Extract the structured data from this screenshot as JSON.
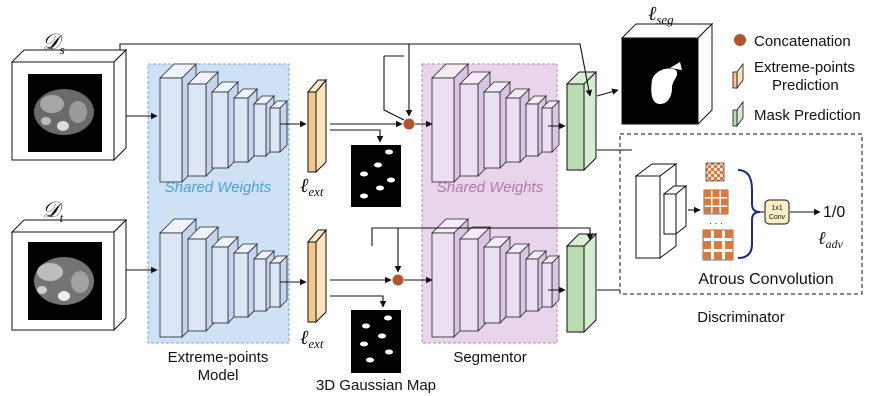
{
  "domain_symbols": {
    "source": "D_s",
    "target": "D_t",
    "source_main": "𝒟",
    "source_sub": "s",
    "target_main": "𝒟",
    "target_sub": "t"
  },
  "labels": {
    "shared_weights_1": "Shared Weights",
    "shared_weights_2": "Shared Weights",
    "extreme_points_model_line1": "Extreme-points",
    "extreme_points_model_line2": "Model",
    "segmentor": "Segmentor",
    "gaussian_map": "3D Gaussian Map",
    "discriminator": "Discriminator",
    "atrous": "Atrous Convolution",
    "conv_line1": "1x1",
    "conv_line2": "Conv",
    "output": "1/0",
    "ellipsis": "· · ·"
  },
  "losses": {
    "ext_top_main": "ℓ",
    "ext_top_sub": "ext",
    "ext_bottom_main": "ℓ",
    "ext_bottom_sub": "ext",
    "seg_main": "ℓ",
    "seg_sub": "seg",
    "adv_main": "ℓ",
    "adv_sub": "adv"
  },
  "legend": {
    "concatenation": "Concatenation",
    "extreme_points_line1": "Extreme-points",
    "extreme_points_line2": "Prediction",
    "mask_prediction": "Mask Prediction"
  },
  "colors": {
    "extreme_bg": "#cfe2f5",
    "segmentor_bg": "#e8d5ea",
    "encoder_face": "#dde6f7",
    "segmentor_face": "#ecdff2",
    "orange": "#f3c98b",
    "green": "#b9dcb0",
    "concat_dot": "#b2552d",
    "shared_blue_text": "#4a9fe0",
    "shared_purple_text": "#b07aae",
    "checker": "#d9783f"
  }
}
